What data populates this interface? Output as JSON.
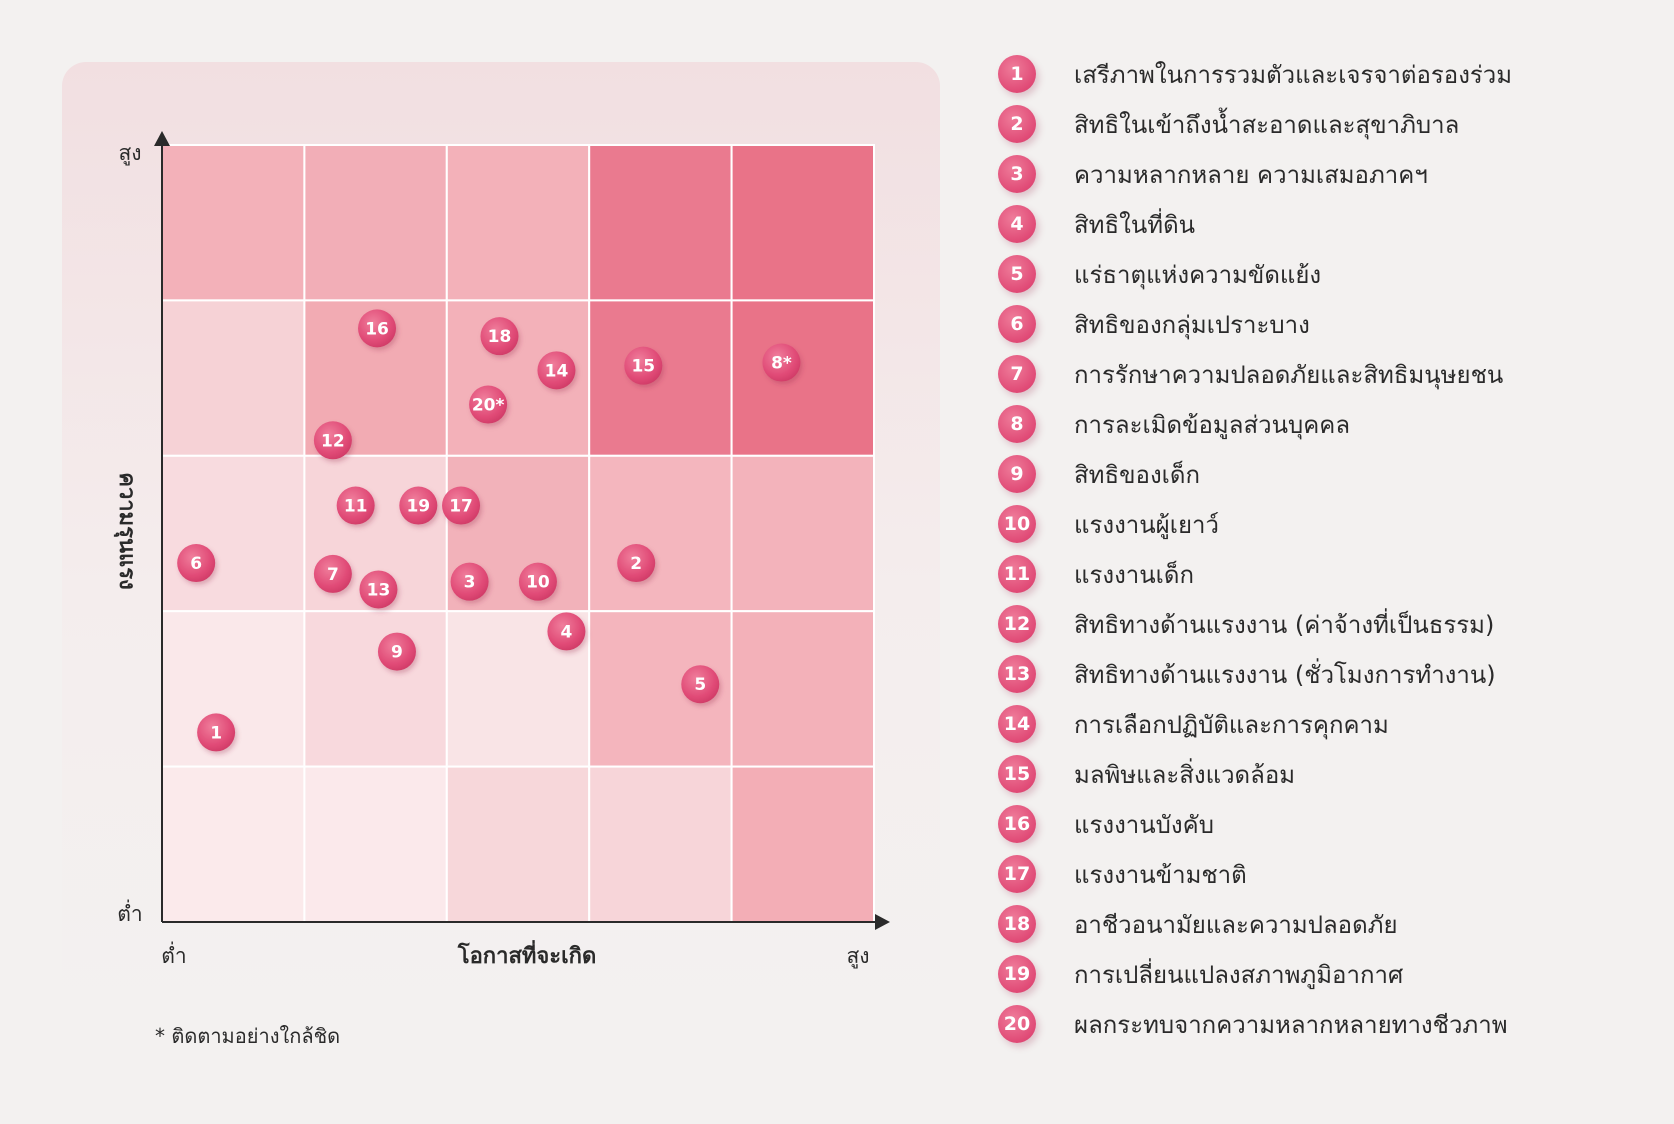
{
  "chart_data": {
    "type": "heatmap",
    "title": "",
    "xlabel": "โอกาสที่จะเกิด",
    "ylabel": "ความรุนแรง",
    "x_tick_labels": {
      "low": "ต่ำ",
      "high": "สูง"
    },
    "y_tick_labels": {
      "low": "ต่ำ",
      "high": "สูง"
    },
    "xlim": [
      0,
      5
    ],
    "ylim": [
      0,
      5
    ],
    "grid": true,
    "legend_position": "right",
    "cell_colors": [
      [
        "#f3b1b9",
        "#f2aeb7",
        "#f3b1b9",
        "#ea7a8f",
        "#e97388"
      ],
      [
        "#f6d2d6",
        "#f2abb3",
        "#f3b1b9",
        "#ea7a8f",
        "#e97388"
      ],
      [
        "#f8dbdf",
        "#f7d5d9",
        "#f2b2ba",
        "#f4b6be",
        "#f3b3bb"
      ],
      [
        "#fae8ea",
        "#f8d9dd",
        "#f9e4e6",
        "#f4b5bd",
        "#f3b1b9"
      ],
      [
        "#fbeaeb",
        "#fbe9eb",
        "#f7d7da",
        "#f7d5d9",
        "#f3aeb6"
      ]
    ],
    "points": [
      {
        "label": "1",
        "x": 0.38,
        "y": 1.22
      },
      {
        "label": "2",
        "x": 3.33,
        "y": 2.31
      },
      {
        "label": "3",
        "x": 2.16,
        "y": 2.19
      },
      {
        "label": "4",
        "x": 2.84,
        "y": 1.87
      },
      {
        "label": "5",
        "x": 3.78,
        "y": 1.53
      },
      {
        "label": "6",
        "x": 0.24,
        "y": 2.31
      },
      {
        "label": "7",
        "x": 1.2,
        "y": 2.24
      },
      {
        "label": "8*",
        "x": 4.35,
        "y": 3.6
      },
      {
        "label": "9",
        "x": 1.65,
        "y": 1.74
      },
      {
        "label": "10",
        "x": 2.64,
        "y": 2.19
      },
      {
        "label": "11",
        "x": 1.36,
        "y": 2.68
      },
      {
        "label": "12",
        "x": 1.2,
        "y": 3.1
      },
      {
        "label": "13",
        "x": 1.52,
        "y": 2.14
      },
      {
        "label": "14",
        "x": 2.77,
        "y": 3.55
      },
      {
        "label": "15",
        "x": 3.38,
        "y": 3.58
      },
      {
        "label": "16",
        "x": 1.51,
        "y": 3.82
      },
      {
        "label": "17",
        "x": 2.1,
        "y": 2.68
      },
      {
        "label": "18",
        "x": 2.37,
        "y": 3.77
      },
      {
        "label": "19",
        "x": 1.8,
        "y": 2.68
      },
      {
        "label": "20*",
        "x": 2.29,
        "y": 3.33
      }
    ]
  },
  "legend_items": [
    {
      "number": "1",
      "label": "เสรีภาพในการรวมตัวและเจรจาต่อรองร่วม"
    },
    {
      "number": "2",
      "label": "สิทธิในเข้าถึงน้ำสะอาดและสุขาภิบาล"
    },
    {
      "number": "3",
      "label": "ความหลากหลาย ความเสมอภาคฯ"
    },
    {
      "number": "4",
      "label": "สิทธิในที่ดิน"
    },
    {
      "number": "5",
      "label": "แร่ธาตุแห่งความขัดแย้ง"
    },
    {
      "number": "6",
      "label": "สิทธิของกลุ่มเปราะบาง"
    },
    {
      "number": "7",
      "label": "การรักษาความปลอดภัยและสิทธิมนุษยชน"
    },
    {
      "number": "8",
      "label": "การละเมิดข้อมูลส่วนบุคคล"
    },
    {
      "number": "9",
      "label": "สิทธิของเด็ก"
    },
    {
      "number": "10",
      "label": "แรงงานผู้เยาว์"
    },
    {
      "number": "11",
      "label": "แรงงานเด็ก"
    },
    {
      "number": "12",
      "label": "สิทธิทางด้านแรงงาน (ค่าจ้างที่เป็นธรรม)"
    },
    {
      "number": "13",
      "label": "สิทธิทางด้านแรงงาน (ชั่วโมงการทำงาน)"
    },
    {
      "number": "14",
      "label": "การเลือกปฏิบัติและการคุกคาม"
    },
    {
      "number": "15",
      "label": "มลพิษและสิ่งแวดล้อม"
    },
    {
      "number": "16",
      "label": "แรงงานบังคับ"
    },
    {
      "number": "17",
      "label": "แรงงานข้ามชาติ"
    },
    {
      "number": "18",
      "label": "อาชีวอนามัยและความปลอดภัย"
    },
    {
      "number": "19",
      "label": "การเปลี่ยนแปลงสภาพภูมิอากาศ"
    },
    {
      "number": "20",
      "label": "ผลกระทบจากความหลากหลายทางชีวภาพ"
    }
  ],
  "footnote": "* ติดตามอย่างใกล้ชิด",
  "colors": {
    "marker": "#e04a76",
    "axis": "#2a2a2a",
    "background": "#f3f1f0"
  }
}
